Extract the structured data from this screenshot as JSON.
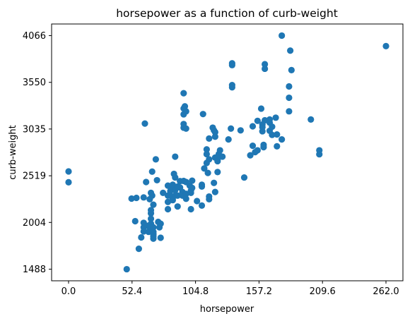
{
  "chart_data": {
    "type": "scatter",
    "title": "horsepower as a function of curb-weight",
    "xlabel": "horsepower",
    "ylabel": "curb-weight",
    "xlim": [
      -14,
      276
    ],
    "ylim": [
      1360,
      4194
    ],
    "x_ticks": [
      0.0,
      52.4,
      104.8,
      157.2,
      209.6,
      262.0
    ],
    "x_tick_labels": [
      "0.0",
      "52.4",
      "104.8",
      "157.2",
      "209.6",
      "262.0"
    ],
    "y_ticks": [
      1488,
      2004,
      2519,
      3035,
      3550,
      4066
    ],
    "y_tick_labels": [
      "1488",
      "2004",
      "2519",
      "3035",
      "3550",
      "4066"
    ],
    "grid": false,
    "marker_color": "#1f77b4",
    "series": [
      {
        "points": [
          [
            0,
            2567
          ],
          [
            0,
            2447
          ],
          [
            48,
            1488
          ],
          [
            52,
            2267
          ],
          [
            55,
            2018
          ],
          [
            56,
            2275
          ],
          [
            58,
            1713
          ],
          [
            60,
            1839
          ],
          [
            62,
            2280
          ],
          [
            62,
            2000
          ],
          [
            62,
            1950
          ],
          [
            62,
            1905
          ],
          [
            63,
            3095
          ],
          [
            64,
            2450
          ],
          [
            65,
            1967
          ],
          [
            66,
            1900
          ],
          [
            67,
            2260
          ],
          [
            68,
            2330
          ],
          [
            68,
            2140
          ],
          [
            68,
            2105
          ],
          [
            68,
            2045
          ],
          [
            68,
            1990
          ],
          [
            68,
            1950
          ],
          [
            69,
            2565
          ],
          [
            69,
            2300
          ],
          [
            70,
            2200
          ],
          [
            70,
            1950
          ],
          [
            70,
            1900
          ],
          [
            70,
            1880
          ],
          [
            70,
            1870
          ],
          [
            70,
            1850
          ],
          [
            70,
            1825
          ],
          [
            72,
            2700
          ],
          [
            73,
            2470
          ],
          [
            74,
            2010
          ],
          [
            75,
            1950
          ],
          [
            76,
            1835
          ],
          [
            76,
            1990
          ],
          [
            78,
            2330
          ],
          [
            82,
            2410
          ],
          [
            82,
            2300
          ],
          [
            82,
            2230
          ],
          [
            82,
            2150
          ],
          [
            84,
            2400
          ],
          [
            84,
            2350
          ],
          [
            85,
            2290
          ],
          [
            86,
            2420
          ],
          [
            86,
            2250
          ],
          [
            87,
            2540
          ],
          [
            88,
            2730
          ],
          [
            88,
            2500
          ],
          [
            88,
            2360
          ],
          [
            88,
            2300
          ],
          [
            90,
            2400
          ],
          [
            90,
            2300
          ],
          [
            90,
            2180
          ],
          [
            92,
            2460
          ],
          [
            92,
            2390
          ],
          [
            94,
            2340
          ],
          [
            94,
            2300
          ],
          [
            95,
            3430
          ],
          [
            95,
            3262
          ],
          [
            95,
            3197
          ],
          [
            95,
            3090
          ],
          [
            95,
            3050
          ],
          [
            95,
            2462
          ],
          [
            96,
            3285
          ],
          [
            97,
            2450
          ],
          [
            97,
            2320
          ],
          [
            97,
            2265
          ],
          [
            97,
            3040
          ],
          [
            97,
            3230
          ],
          [
            100,
            2410
          ],
          [
            101,
            2355
          ],
          [
            101,
            2330
          ],
          [
            101,
            2150
          ],
          [
            102,
            2465
          ],
          [
            102,
            2385
          ],
          [
            106,
            2240
          ],
          [
            110,
            2420
          ],
          [
            110,
            2400
          ],
          [
            110,
            2190
          ],
          [
            111,
            3200
          ],
          [
            112,
            2600
          ],
          [
            114,
            2810
          ],
          [
            114,
            2758
          ],
          [
            114,
            2660
          ],
          [
            115,
            2550
          ],
          [
            116,
            2930
          ],
          [
            116,
            2700
          ],
          [
            116,
            2290
          ],
          [
            116,
            2260
          ],
          [
            119,
            3050
          ],
          [
            120,
            2440
          ],
          [
            120,
            3020
          ],
          [
            121,
            3000
          ],
          [
            121,
            2950
          ],
          [
            121,
            2720
          ],
          [
            121,
            2340
          ],
          [
            123,
            2560
          ],
          [
            123,
            2695
          ],
          [
            123,
            2710
          ],
          [
            123,
            2720
          ],
          [
            123,
            2680
          ],
          [
            124,
            2758
          ],
          [
            125,
            2800
          ],
          [
            127,
            2730
          ],
          [
            132,
            2920
          ],
          [
            134,
            3040
          ],
          [
            135,
            3760
          ],
          [
            135,
            3740
          ],
          [
            135,
            3520
          ],
          [
            135,
            3495
          ],
          [
            142,
            3020
          ],
          [
            145,
            2500
          ],
          [
            150,
            2745
          ],
          [
            152,
            3065
          ],
          [
            152,
            2850
          ],
          [
            154,
            2780
          ],
          [
            156,
            2800
          ],
          [
            156,
            3125
          ],
          [
            159,
            3260
          ],
          [
            160,
            3010
          ],
          [
            160,
            3085
          ],
          [
            160,
            3055
          ],
          [
            161,
            2860
          ],
          [
            161,
            2834
          ],
          [
            162,
            3131
          ],
          [
            162,
            3700
          ],
          [
            162,
            3750
          ],
          [
            166,
            3105
          ],
          [
            166,
            3015
          ],
          [
            166,
            3140
          ],
          [
            168,
            2970
          ],
          [
            168,
            3060
          ],
          [
            171,
            3160
          ],
          [
            172,
            2975
          ],
          [
            172,
            2844
          ],
          [
            176,
            2920
          ],
          [
            176,
            4066
          ],
          [
            182,
            3230
          ],
          [
            182,
            3380
          ],
          [
            182,
            3505
          ],
          [
            183,
            3900
          ],
          [
            184,
            3685
          ],
          [
            200,
            3140
          ],
          [
            207,
            2800
          ],
          [
            207,
            2756
          ],
          [
            262,
            3950
          ]
        ]
      }
    ]
  }
}
